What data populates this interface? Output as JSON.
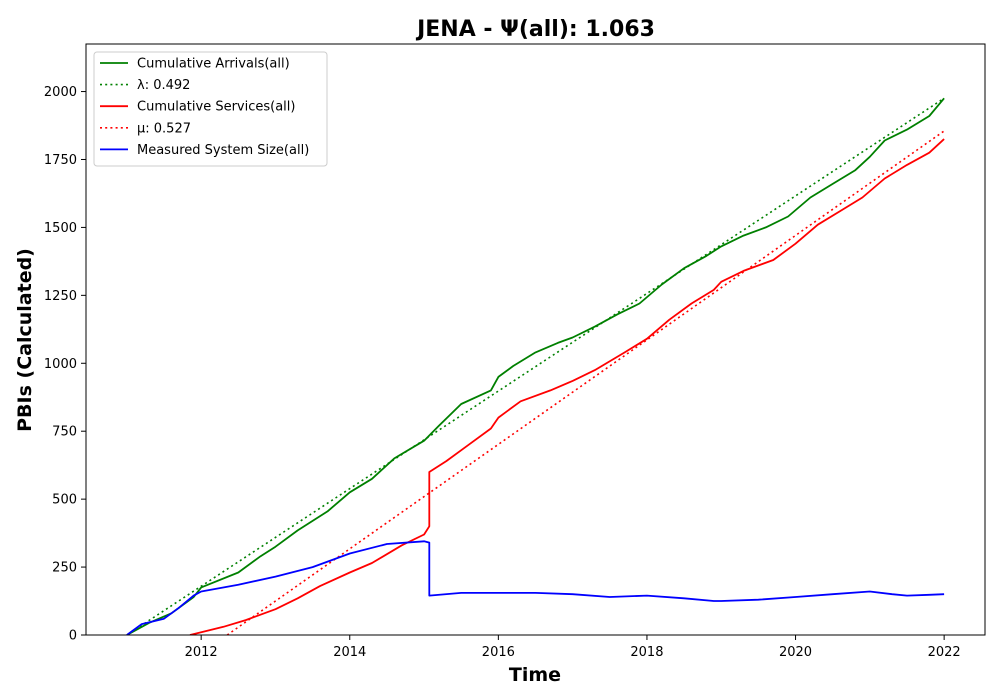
{
  "chart_data": {
    "type": "line",
    "title": "JENA -  Ψ(all): 1.063",
    "xlabel": "Time",
    "ylabel": "PBIs (Calculated)",
    "xlim": [
      2010.45,
      2022.55
    ],
    "ylim": [
      0,
      2175
    ],
    "x_ticks": [
      2012,
      2014,
      2016,
      2018,
      2020,
      2022
    ],
    "y_ticks": [
      0,
      250,
      500,
      750,
      1000,
      1250,
      1500,
      1750,
      2000
    ],
    "grid": false,
    "legend_position": "upper-left",
    "series": [
      {
        "name": "Cumulative Arrivals(all)",
        "style": "solid",
        "color": "#008000",
        "x": [
          2011.0,
          2011.3,
          2011.6,
          2011.9,
          2012.0,
          2012.5,
          2012.8,
          2013.0,
          2013.3,
          2013.7,
          2014.0,
          2014.3,
          2014.6,
          2015.0,
          2015.2,
          2015.5,
          2015.9,
          2016.0,
          2016.2,
          2016.5,
          2016.8,
          2017.0,
          2017.3,
          2017.6,
          2017.9,
          2018.2,
          2018.5,
          2018.8,
          2019.0,
          2019.3,
          2019.6,
          2019.9,
          2020.2,
          2020.5,
          2020.8,
          2021.0,
          2021.2,
          2021.5,
          2021.8,
          2022.0
        ],
        "y": [
          0,
          45,
          80,
          140,
          175,
          230,
          290,
          325,
          385,
          455,
          525,
          575,
          650,
          715,
          770,
          850,
          900,
          950,
          990,
          1040,
          1075,
          1095,
          1135,
          1180,
          1220,
          1290,
          1350,
          1395,
          1430,
          1470,
          1500,
          1540,
          1610,
          1660,
          1710,
          1760,
          1820,
          1860,
          1910,
          1975
        ]
      },
      {
        "name": "λ: 0.492",
        "style": "dotted",
        "color": "#008000",
        "x": [
          2011.0,
          2022.0
        ],
        "y": [
          0,
          1975
        ]
      },
      {
        "name": "Cumulative Services(all)",
        "style": "solid",
        "color": "#ff0000",
        "x": [
          2011.85,
          2012.0,
          2012.3,
          2012.6,
          2013.0,
          2013.3,
          2013.6,
          2014.0,
          2014.3,
          2014.7,
          2015.0,
          2015.07,
          2015.07,
          2015.3,
          2015.6,
          2015.9,
          2016.0,
          2016.3,
          2016.7,
          2017.0,
          2017.3,
          2017.7,
          2018.0,
          2018.3,
          2018.6,
          2018.9,
          2019.0,
          2019.3,
          2019.7,
          2020.0,
          2020.3,
          2020.6,
          2020.9,
          2021.2,
          2021.5,
          2021.8,
          2022.0
        ],
        "y": [
          0,
          10,
          30,
          55,
          95,
          135,
          180,
          230,
          265,
          330,
          370,
          400,
          600,
          640,
          700,
          760,
          800,
          860,
          900,
          935,
          975,
          1040,
          1090,
          1160,
          1220,
          1270,
          1300,
          1340,
          1380,
          1440,
          1510,
          1560,
          1610,
          1680,
          1730,
          1775,
          1825
        ]
      },
      {
        "name": "μ: 0.527",
        "style": "dotted",
        "color": "#ff0000",
        "x": [
          2012.35,
          2022.0
        ],
        "y": [
          0,
          1855
        ]
      },
      {
        "name": "Measured System Size(all)",
        "style": "solid",
        "color": "#0000ff",
        "x": [
          2011.0,
          2011.2,
          2011.5,
          2011.7,
          2011.9,
          2012.0,
          2012.5,
          2013.0,
          2013.5,
          2014.0,
          2014.5,
          2015.0,
          2015.07,
          2015.07,
          2015.5,
          2016.0,
          2016.5,
          2017.0,
          2017.5,
          2018.0,
          2018.5,
          2018.9,
          2019.0,
          2019.5,
          2020.0,
          2020.5,
          2021.0,
          2021.3,
          2021.5,
          2021.8,
          2022.0
        ],
        "y": [
          0,
          40,
          60,
          100,
          145,
          160,
          185,
          215,
          250,
          300,
          335,
          345,
          340,
          145,
          155,
          155,
          155,
          150,
          140,
          145,
          135,
          125,
          125,
          130,
          140,
          150,
          160,
          150,
          145,
          148,
          150
        ]
      }
    ]
  }
}
